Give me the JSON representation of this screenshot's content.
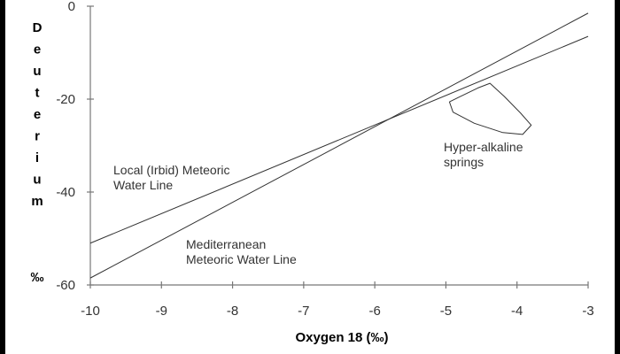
{
  "chart_data": {
    "type": "line",
    "title": "",
    "xlabel": "Oxygen 18 (‰)",
    "ylabel": "Deuterium ‰",
    "xlim": [
      -10,
      -3
    ],
    "ylim": [
      -60,
      0
    ],
    "x_ticks": [
      -10,
      -9,
      -8,
      -7,
      -6,
      -5,
      -4,
      -3
    ],
    "y_ticks": [
      -60,
      -40,
      -20,
      0
    ],
    "grid": false,
    "legend": "none",
    "series": [
      {
        "label": "Local (Irbid) Meteoric Water Line",
        "label_lines": [
          "Local (Irbid) Meteoric",
          "Water Line"
        ],
        "x": [
          -10,
          -3
        ],
        "y": [
          -51,
          -6.5
        ],
        "color": "#333333"
      },
      {
        "label": "Mediterranean Meteoric Water Line",
        "label_lines": [
          "Mediterranean",
          "Meteoric Water Line"
        ],
        "x": [
          -10,
          -3
        ],
        "y": [
          -58.5,
          -1.5
        ],
        "color": "#333333"
      }
    ],
    "region": {
      "label": "Hyper-alkaline springs",
      "label_lines": [
        "Hyper-alkaline",
        "springs"
      ],
      "outline": [
        [
          -4.38,
          -16.6
        ],
        [
          -4.55,
          -17.6
        ],
        [
          -4.82,
          -19.6
        ],
        [
          -4.95,
          -20.6
        ],
        [
          -4.9,
          -22.8
        ],
        [
          -4.6,
          -25.2
        ],
        [
          -4.2,
          -27.2
        ],
        [
          -3.92,
          -27.6
        ],
        [
          -3.8,
          -25.6
        ],
        [
          -3.95,
          -23.0
        ],
        [
          -4.18,
          -19.4
        ]
      ],
      "color": "#333333"
    }
  }
}
